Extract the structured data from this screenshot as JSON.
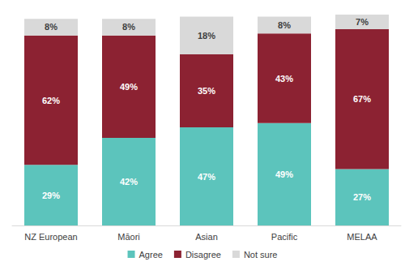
{
  "chart_data": {
    "type": "bar",
    "stacked": true,
    "data_labels": true,
    "tick_labels": "x",
    "legend": "bottom",
    "categories": [
      "NZ European",
      "Māori",
      "Asian",
      "Pacific",
      "MELAA"
    ],
    "ylim": [
      0,
      101
    ],
    "series": [
      {
        "name": "Agree",
        "color": "#5cc4bc",
        "values": [
          29,
          42,
          47,
          49,
          27
        ],
        "value_labels": [
          "29%",
          "42%",
          "47%",
          "49%",
          "27%"
        ]
      },
      {
        "name": "Disagree",
        "color": "#8c2232",
        "values": [
          62,
          49,
          35,
          43,
          67
        ],
        "value_labels": [
          "62%",
          "49%",
          "35%",
          "43%",
          "67%"
        ]
      },
      {
        "name": "Not sure",
        "color": "#d9d9d9",
        "values": [
          8,
          8,
          18,
          8,
          7
        ],
        "value_labels": [
          "8%",
          "8%",
          "18%",
          "8%",
          "7%"
        ]
      }
    ]
  }
}
